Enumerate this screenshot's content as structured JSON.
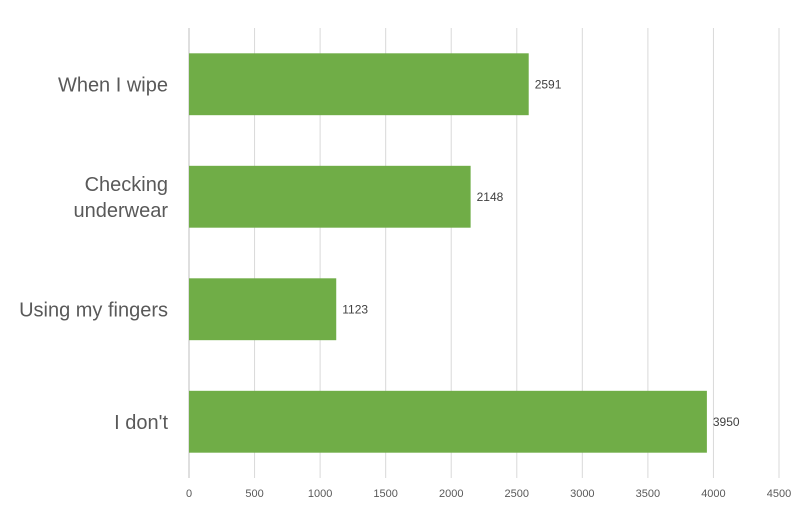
{
  "chart_data": {
    "type": "bar",
    "orientation": "horizontal",
    "title": "",
    "xlabel": "",
    "ylabel": "",
    "categories": [
      [
        "When I wipe"
      ],
      [
        "Checking",
        "underwear"
      ],
      [
        "Using my fingers"
      ],
      [
        "I don't"
      ]
    ],
    "values": [
      2591,
      2148,
      1123,
      3950
    ],
    "data_labels": [
      "2591",
      "2148",
      "1123",
      "3950"
    ],
    "xlim": [
      0,
      4500
    ],
    "xticks": [
      0,
      500,
      1000,
      1500,
      2000,
      2500,
      3000,
      3500,
      4000,
      4500
    ],
    "xtick_labels": [
      "0",
      "500",
      "1000",
      "1500",
      "2000",
      "2500",
      "3000",
      "3500",
      "4000",
      "4500"
    ],
    "grid": "vertical",
    "legend": "none",
    "colors": {
      "bar": "#70AD47",
      "grid": "#D9D9D9",
      "axis": "#BFBFBF",
      "text": "#595959"
    }
  }
}
